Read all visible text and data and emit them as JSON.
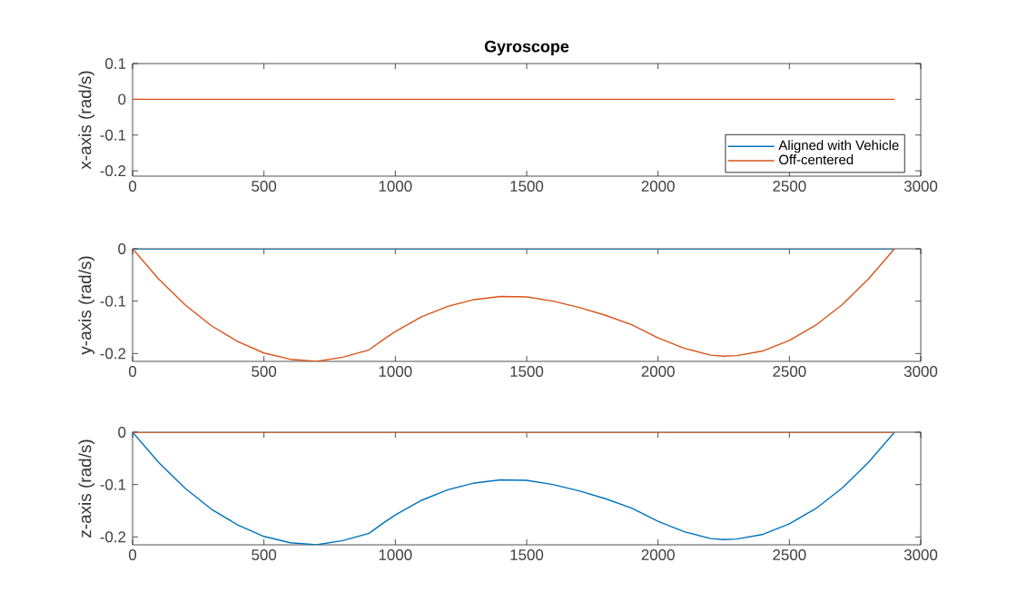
{
  "chart_data": [
    {
      "type": "line",
      "title": "Gyroscope",
      "ylabel": "x-axis (rad/s)",
      "x": [
        0,
        2900
      ],
      "xlim": [
        0,
        3000
      ],
      "xticks": [
        0,
        500,
        1000,
        1500,
        2000,
        2500,
        3000
      ],
      "ylim": [
        -0.215,
        0.1
      ],
      "yticks": [
        -0.2,
        -0.1,
        0,
        0.1
      ],
      "legend": "bottom right",
      "series": [
        {
          "name": "Aligned with Vehicle",
          "color": "#0072bd",
          "values": [
            null,
            null
          ]
        },
        {
          "name": "Off-centered",
          "color": "#d95319",
          "values": [
            0,
            0
          ]
        }
      ]
    },
    {
      "type": "line",
      "ylabel": "y-axis (rad/s)",
      "x": [
        0,
        100,
        200,
        300,
        400,
        500,
        600,
        700,
        800,
        900,
        950,
        1000,
        1100,
        1200,
        1300,
        1400,
        1500,
        1600,
        1700,
        1800,
        1900,
        2000,
        2100,
        2200,
        2250,
        2300,
        2400,
        2500,
        2600,
        2700,
        2800,
        2900
      ],
      "xlim": [
        0,
        3000
      ],
      "xticks": [
        0,
        500,
        1000,
        1500,
        2000,
        2500,
        3000
      ],
      "ylim": [
        -0.215,
        0
      ],
      "yticks": [
        -0.2,
        -0.1,
        0
      ],
      "series": [
        {
          "color": "#0072bd",
          "values": [
            0,
            0,
            0,
            0,
            0,
            0,
            0,
            0,
            0,
            0,
            0,
            0,
            0,
            0,
            0,
            0,
            0,
            0,
            0,
            0,
            0,
            0,
            0,
            0,
            0,
            0,
            0,
            0,
            0,
            0,
            0,
            0
          ]
        },
        {
          "color": "#d95319",
          "values": [
            0,
            -0.058,
            -0.107,
            -0.147,
            -0.177,
            -0.199,
            -0.211,
            -0.215,
            -0.207,
            -0.193,
            -0.175,
            -0.158,
            -0.13,
            -0.11,
            -0.097,
            -0.091,
            -0.092,
            -0.1,
            -0.112,
            -0.127,
            -0.145,
            -0.17,
            -0.19,
            -0.203,
            -0.205,
            -0.204,
            -0.195,
            -0.175,
            -0.146,
            -0.107,
            -0.058,
            0
          ]
        }
      ]
    },
    {
      "type": "line",
      "ylabel": "z-axis (rad/s)",
      "x": [
        0,
        100,
        200,
        300,
        400,
        500,
        600,
        700,
        800,
        900,
        950,
        1000,
        1100,
        1200,
        1300,
        1400,
        1500,
        1600,
        1700,
        1800,
        1900,
        2000,
        2100,
        2200,
        2250,
        2300,
        2400,
        2500,
        2600,
        2700,
        2800,
        2900
      ],
      "xlim": [
        0,
        3000
      ],
      "xticks": [
        0,
        500,
        1000,
        1500,
        2000,
        2500,
        3000
      ],
      "ylim": [
        -0.215,
        0
      ],
      "yticks": [
        -0.2,
        -0.1,
        0
      ],
      "series": [
        {
          "color": "#0072bd",
          "values": [
            0,
            -0.058,
            -0.107,
            -0.147,
            -0.177,
            -0.199,
            -0.211,
            -0.215,
            -0.207,
            -0.193,
            -0.175,
            -0.158,
            -0.13,
            -0.11,
            -0.097,
            -0.091,
            -0.092,
            -0.1,
            -0.112,
            -0.127,
            -0.145,
            -0.17,
            -0.19,
            -0.203,
            -0.205,
            -0.204,
            -0.195,
            -0.175,
            -0.146,
            -0.107,
            -0.058,
            0
          ]
        },
        {
          "color": "#d95319",
          "values": [
            0,
            0,
            0,
            0,
            0,
            0,
            0,
            0,
            0,
            0,
            0,
            0,
            0,
            0,
            0,
            0,
            0,
            0,
            0,
            0,
            0,
            0,
            0,
            0,
            0,
            0,
            0,
            0,
            0,
            0,
            0,
            0
          ]
        }
      ]
    }
  ]
}
